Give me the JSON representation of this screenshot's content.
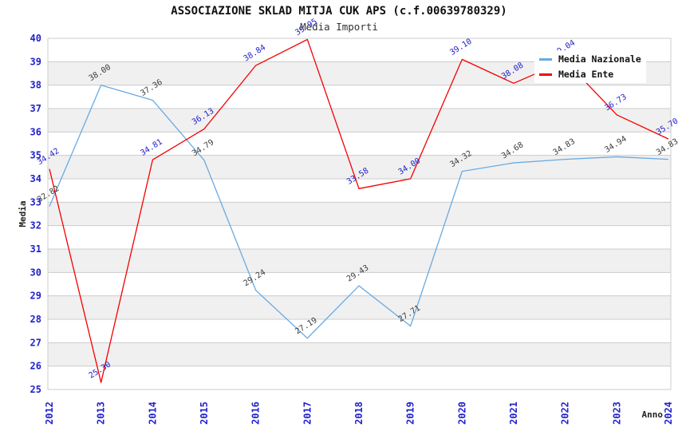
{
  "title": "ASSOCIAZIONE SKLAD MITJA CUK APS (c.f.00639780329)",
  "subtitle": "Media Importi",
  "legend": {
    "items": [
      {
        "label": "Media Nazionale",
        "color": "#6aaae0"
      },
      {
        "label": "Media Ente",
        "color": "#f40000"
      }
    ]
  },
  "chart_data": {
    "type": "line",
    "title": "ASSOCIAZIONE SKLAD MITJA CUK APS (c.f.00639780329)",
    "subtitle": "Media Importi",
    "x": [
      "2012",
      "2013",
      "2014",
      "2015",
      "2016",
      "2017",
      "2018",
      "2019",
      "2020",
      "2021",
      "2022",
      "2023",
      "2024"
    ],
    "series": [
      {
        "name": "Media Nazionale",
        "color": "#6aaae0",
        "label_color": "#3c3c3c",
        "values": [
          32.82,
          38.0,
          37.36,
          34.79,
          29.24,
          27.19,
          29.43,
          27.71,
          34.32,
          34.68,
          34.83,
          34.94,
          34.83
        ]
      },
      {
        "name": "Media Ente",
        "color": "#f40000",
        "label_color": "#2222cc",
        "values": [
          34.42,
          25.3,
          34.81,
          36.13,
          38.84,
          39.95,
          33.58,
          34.0,
          39.1,
          38.08,
          39.04,
          36.73,
          35.7
        ]
      }
    ],
    "xlabel": "Anno",
    "ylabel": "Media",
    "ylim": [
      25,
      40
    ],
    "ytick_step": 1,
    "grid": "horizontal",
    "band_color": "#f0f0f0",
    "grid_color": "#cccccc",
    "tick_color": "#2222cc",
    "legend_position": "top-right"
  }
}
